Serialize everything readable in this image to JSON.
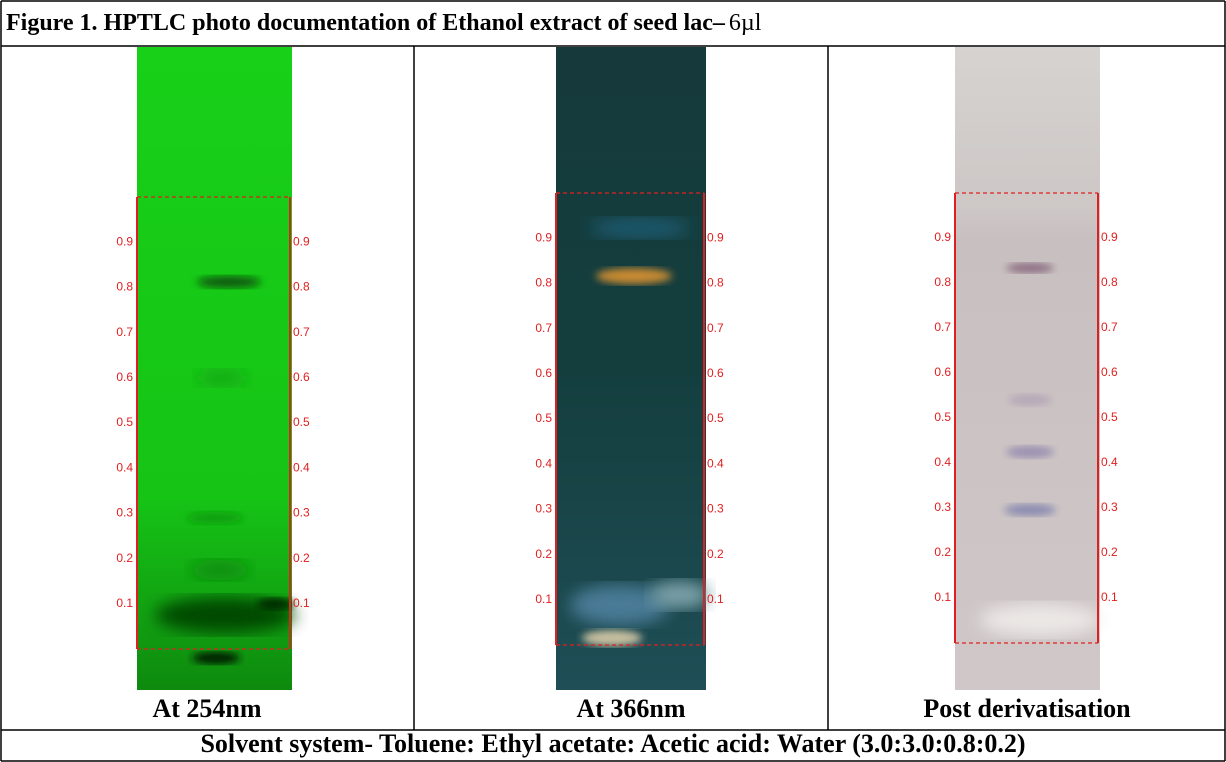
{
  "title": "Figure 1. HPTLC photo documentation of Ethanol extract of seed lac–",
  "title_dose": "6µl",
  "rf_scale": [
    0.9,
    0.8,
    0.7,
    0.6,
    0.5,
    0.4,
    0.3,
    0.2,
    0.1
  ],
  "panels": [
    {
      "caption": "At 254nm"
    },
    {
      "caption": "At 366nm"
    },
    {
      "caption": "Post derivatisation"
    }
  ],
  "footer": "Solvent system- Toluene: Ethyl acetate: Acetic acid: Water (3.0:3.0:0.8:0.2)"
}
